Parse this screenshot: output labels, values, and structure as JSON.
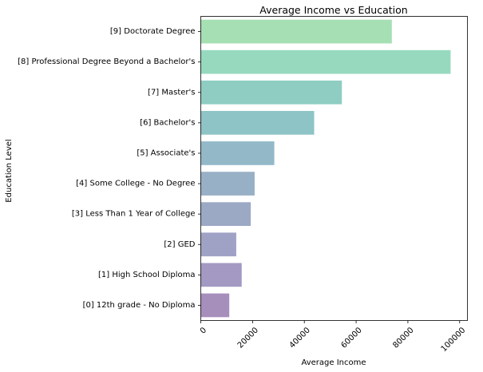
{
  "chart_data": {
    "type": "bar",
    "orientation": "horizontal",
    "title": "Average Income vs Education",
    "xlabel": "Average Income",
    "ylabel": "Education Level",
    "xlim": [
      0,
      103000
    ],
    "xticks": [
      0,
      20000,
      40000,
      60000,
      80000,
      100000
    ],
    "xtick_labels": [
      "0",
      "20000",
      "40000",
      "60000",
      "80000",
      "100000"
    ],
    "categories": [
      "[9] Doctorate Degree",
      "[8] Professional Degree Beyond a Bachelor's",
      "[7] Master's",
      "[6] Bachelor's",
      "[5] Associate's",
      "[4] Some College - No Degree",
      "[3] Less Than 1 Year of College",
      "[2] GED",
      "[1] High School Diploma",
      "[0] 12th grade - No Diploma"
    ],
    "values": [
      73800,
      96500,
      54500,
      43800,
      28400,
      20800,
      19300,
      13700,
      15800,
      11000
    ],
    "colors": [
      "#a6dfb3",
      "#97d9bf",
      "#8fcdc2",
      "#8ec4c6",
      "#93b9c8",
      "#98b0c6",
      "#9ba9c5",
      "#a0a2c5",
      "#a499c2",
      "#a78fbc"
    ],
    "grid": false,
    "legend": "none"
  }
}
